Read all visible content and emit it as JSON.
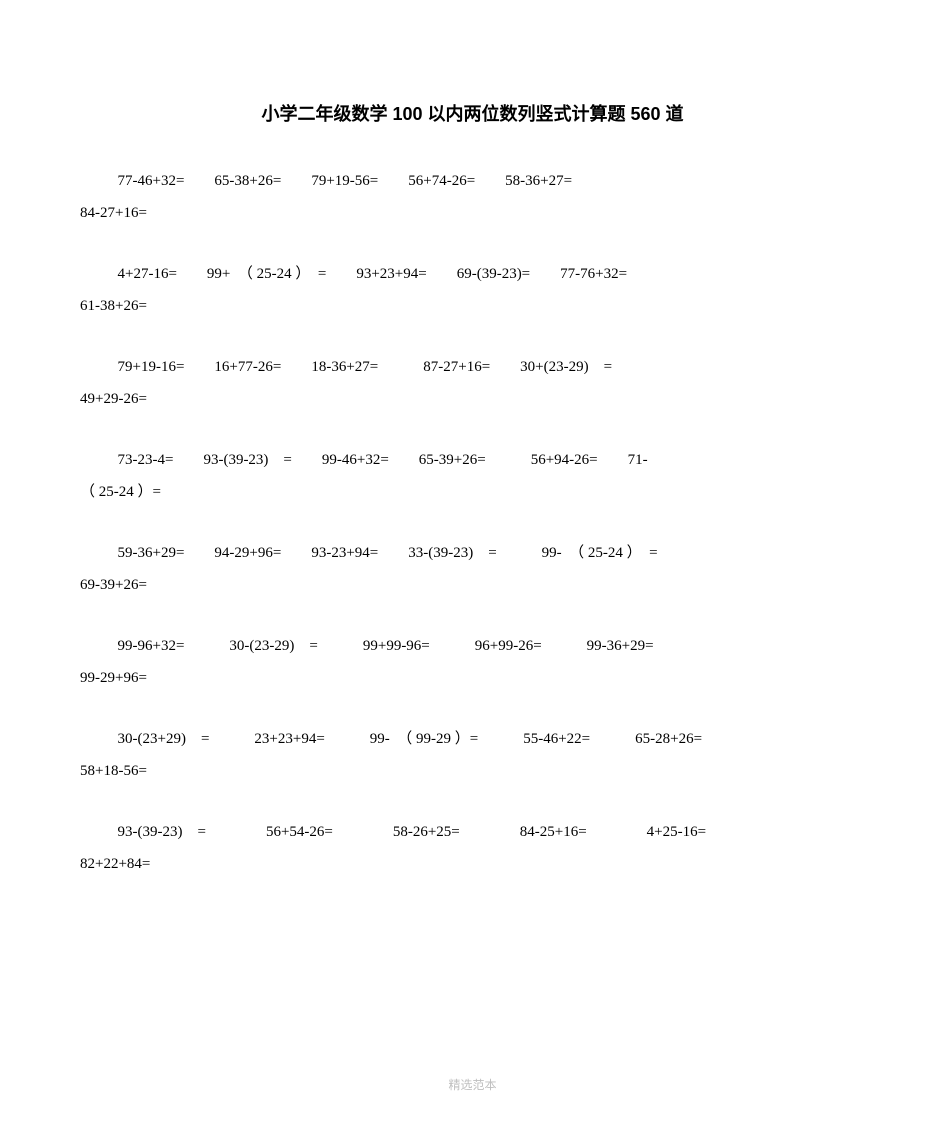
{
  "title": "小学二年级数学 100 以内两位数列竖式计算题 560 道",
  "footer": "精选范本",
  "groups": [
    {
      "line1": "77-46+32=  65-38+26=  79+19-56=  56+74-26=  58-36+27=",
      "line2": "84-27+16="
    },
    {
      "line1": "4+27-16=  99+　（ 25-24 ）　=  93+23+94=  69-(39-23)=  77-76+32=",
      "line2": "61-38+26="
    },
    {
      "line1": "79+19-16=  16+77-26=  18-36+27=   87-27+16=  30+(23-29)　=",
      "line2": "49+29-26="
    },
    {
      "line1": "73-23-4=  93-(39-23)　=  99-46+32=  65-39+26=   56+94-26=  71-",
      "line2": "（ 25-24 ）="
    },
    {
      "line1": "59-36+29=  94-29+96=  93-23+94=  33-(39-23)　=   99-　（ 25-24 ）　=",
      "line2": "69-39+26="
    },
    {
      "line1": "99-96+32=   30-(23-29)　=   99+99-96=   96+99-26=   99-36+29=",
      "line2": "99-29+96="
    },
    {
      "line1": "30-(23+29)　=   23+23+94=   99-　（ 99-29 ）=   55-46+22=   65-28+26=",
      "line2": "58+18-56="
    },
    {
      "line1": "93-(39-23)　=    56+54-26=    58-26+25=    84-25+16=    4+25-16=",
      "line2": "82+22+84="
    }
  ]
}
